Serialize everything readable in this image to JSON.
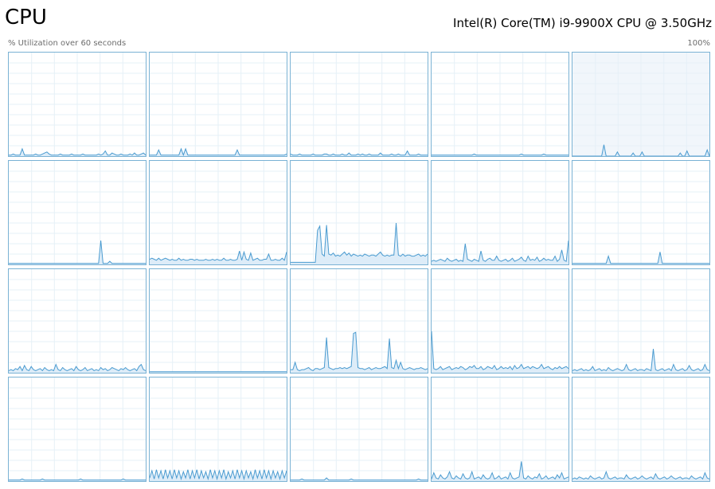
{
  "header": {
    "title": "CPU",
    "cpu_name": "Intel(R) Core(TM) i9-9900X CPU @ 3.50GHz",
    "utilization_label": "% Utilization over 60 seconds",
    "utilization_max": "100%"
  },
  "colors": {
    "border": "#7ab2d4",
    "line": "#4a9bd0",
    "fill": "#d9eaf7",
    "gridline": "#e6f0f7",
    "selected_background": "#f1f6fb"
  },
  "graphs": [
    {
      "selected": false,
      "values": [
        1,
        1,
        2,
        1,
        1,
        1,
        7,
        1,
        1,
        1,
        1,
        1,
        2,
        1,
        1,
        2,
        3,
        4,
        2,
        1,
        1,
        1,
        1,
        2,
        1,
        1,
        1,
        1,
        2,
        1,
        1,
        1,
        1,
        2,
        1,
        1,
        1,
        1,
        1,
        1,
        2,
        1,
        2,
        5,
        1,
        1,
        3,
        2,
        1,
        1,
        2,
        1,
        1,
        1,
        2,
        1,
        3,
        1,
        1,
        2,
        3,
        1
      ]
    },
    {
      "selected": false,
      "values": [
        1,
        1,
        1,
        1,
        6,
        1,
        1,
        1,
        1,
        1,
        1,
        1,
        1,
        1,
        7,
        1,
        7,
        1,
        1,
        1,
        1,
        1,
        1,
        1,
        1,
        1,
        1,
        1,
        1,
        1,
        1,
        1,
        1,
        1,
        1,
        1,
        1,
        1,
        1,
        6,
        1,
        1,
        1,
        1,
        1,
        1,
        1,
        1,
        1,
        1,
        1,
        1,
        1,
        1,
        1,
        1,
        1,
        1,
        1,
        1,
        1,
        2
      ]
    },
    {
      "selected": false,
      "values": [
        2,
        1,
        1,
        1,
        2,
        1,
        1,
        1,
        1,
        1,
        2,
        1,
        1,
        1,
        1,
        2,
        2,
        1,
        1,
        2,
        1,
        1,
        1,
        2,
        1,
        1,
        3,
        1,
        1,
        1,
        2,
        1,
        2,
        1,
        1,
        2,
        1,
        1,
        1,
        1,
        3,
        1,
        1,
        1,
        1,
        2,
        1,
        1,
        2,
        1,
        1,
        1,
        5,
        1,
        1,
        1,
        1,
        2,
        1,
        1,
        1,
        1
      ]
    },
    {
      "selected": false,
      "values": [
        1,
        1,
        1,
        1,
        1,
        1,
        1,
        1,
        1,
        1,
        1,
        1,
        1,
        1,
        1,
        1,
        1,
        1,
        1,
        2,
        1,
        1,
        1,
        1,
        1,
        1,
        1,
        1,
        1,
        1,
        1,
        1,
        1,
        1,
        1,
        1,
        1,
        1,
        1,
        1,
        2,
        1,
        1,
        1,
        1,
        1,
        1,
        1,
        1,
        1,
        2,
        1,
        1,
        1,
        1,
        1,
        1,
        1,
        1,
        1,
        1,
        1
      ]
    },
    {
      "selected": true,
      "values": [
        0,
        0,
        0,
        0,
        0,
        0,
        0,
        0,
        0,
        0,
        0,
        0,
        0,
        0,
        11,
        0,
        0,
        0,
        0,
        0,
        4,
        0,
        0,
        0,
        0,
        0,
        0,
        3,
        0,
        0,
        0,
        4,
        0,
        0,
        0,
        0,
        0,
        0,
        0,
        0,
        0,
        0,
        0,
        0,
        0,
        0,
        0,
        0,
        3,
        0,
        0,
        5,
        0,
        0,
        0,
        0,
        0,
        0,
        0,
        0,
        6,
        0
      ]
    },
    {
      "selected": false,
      "values": [
        1,
        1,
        1,
        1,
        1,
        1,
        1,
        1,
        1,
        1,
        1,
        1,
        1,
        1,
        1,
        1,
        1,
        1,
        1,
        1,
        1,
        1,
        1,
        1,
        1,
        1,
        1,
        1,
        1,
        1,
        1,
        1,
        1,
        1,
        1,
        1,
        1,
        1,
        1,
        1,
        1,
        23,
        1,
        1,
        1,
        3,
        1,
        1,
        1,
        1,
        1,
        1,
        1,
        1,
        1,
        1,
        1,
        1,
        1,
        1,
        1,
        1
      ]
    },
    {
      "selected": false,
      "values": [
        5,
        6,
        5,
        4,
        6,
        4,
        5,
        6,
        5,
        4,
        5,
        4,
        4,
        6,
        4,
        5,
        4,
        4,
        5,
        5,
        4,
        5,
        4,
        4,
        4,
        5,
        4,
        4,
        5,
        4,
        5,
        4,
        4,
        6,
        4,
        4,
        5,
        4,
        4,
        5,
        13,
        4,
        12,
        5,
        4,
        11,
        4,
        5,
        6,
        4,
        4,
        5,
        5,
        10,
        4,
        4,
        5,
        4,
        4,
        6,
        4,
        12
      ]
    },
    {
      "selected": false,
      "values": [
        2,
        2,
        2,
        2,
        2,
        2,
        2,
        2,
        2,
        2,
        2,
        2,
        33,
        37,
        10,
        8,
        38,
        10,
        9,
        11,
        8,
        9,
        8,
        10,
        12,
        9,
        11,
        8,
        10,
        9,
        8,
        9,
        8,
        10,
        9,
        8,
        9,
        9,
        8,
        10,
        12,
        9,
        8,
        9,
        8,
        9,
        9,
        40,
        9,
        8,
        10,
        8,
        9,
        9,
        8,
        8,
        9,
        10,
        8,
        9,
        8,
        10
      ]
    },
    {
      "selected": false,
      "values": [
        3,
        4,
        3,
        4,
        5,
        4,
        3,
        6,
        4,
        3,
        4,
        5,
        3,
        4,
        3,
        20,
        5,
        4,
        3,
        5,
        4,
        3,
        13,
        4,
        3,
        5,
        6,
        4,
        4,
        8,
        4,
        3,
        4,
        5,
        3,
        4,
        6,
        3,
        4,
        5,
        7,
        4,
        3,
        8,
        4,
        5,
        4,
        7,
        3,
        4,
        6,
        4,
        5,
        4,
        4,
        8,
        3,
        5,
        14,
        4,
        3,
        23
      ]
    },
    {
      "selected": false,
      "values": [
        1,
        1,
        1,
        1,
        1,
        1,
        1,
        1,
        1,
        1,
        1,
        1,
        1,
        1,
        1,
        1,
        8,
        1,
        1,
        1,
        1,
        1,
        1,
        1,
        1,
        1,
        1,
        1,
        1,
        1,
        1,
        1,
        1,
        1,
        1,
        1,
        1,
        1,
        1,
        12,
        1,
        1,
        1,
        1,
        1,
        1,
        1,
        1,
        1,
        1,
        1,
        1,
        1,
        1,
        1,
        1,
        1,
        1,
        1,
        1,
        1,
        1
      ]
    },
    {
      "selected": false,
      "values": [
        2,
        3,
        2,
        4,
        3,
        6,
        2,
        7,
        3,
        2,
        6,
        3,
        2,
        3,
        4,
        2,
        5,
        3,
        2,
        3,
        2,
        8,
        3,
        2,
        5,
        3,
        2,
        3,
        4,
        2,
        6,
        3,
        2,
        3,
        5,
        2,
        3,
        4,
        2,
        3,
        2,
        5,
        3,
        4,
        2,
        3,
        5,
        4,
        3,
        2,
        4,
        3,
        5,
        3,
        2,
        3,
        4,
        2,
        6,
        8,
        3,
        2
      ]
    },
    {
      "selected": false,
      "values": [
        1,
        1,
        1,
        1,
        1,
        1,
        1,
        1,
        1,
        1,
        1,
        1,
        1,
        1,
        1,
        1,
        1,
        1,
        1,
        1,
        1,
        1,
        1,
        1,
        1,
        1,
        1,
        1,
        1,
        1,
        1,
        1,
        1,
        1,
        1,
        1,
        1,
        1,
        1,
        1,
        1,
        1,
        1,
        1,
        1,
        1,
        1,
        1,
        1,
        1,
        1,
        1,
        1,
        1,
        1,
        1,
        1,
        1,
        1,
        1,
        1,
        1
      ]
    },
    {
      "selected": false,
      "values": [
        3,
        3,
        10,
        3,
        2,
        3,
        3,
        4,
        5,
        3,
        2,
        4,
        4,
        3,
        4,
        5,
        34,
        5,
        4,
        3,
        4,
        4,
        5,
        4,
        5,
        4,
        5,
        6,
        38,
        39,
        5,
        4,
        4,
        3,
        4,
        5,
        3,
        4,
        5,
        4,
        4,
        5,
        6,
        4,
        33,
        5,
        4,
        12,
        4,
        10,
        4,
        3,
        4,
        5,
        4,
        3,
        4,
        4,
        5,
        4,
        3,
        4
      ]
    },
    {
      "selected": false,
      "values": [
        40,
        4,
        3,
        4,
        6,
        3,
        4,
        5,
        6,
        3,
        4,
        5,
        4,
        6,
        5,
        3,
        4,
        6,
        5,
        7,
        4,
        4,
        6,
        3,
        4,
        6,
        5,
        4,
        7,
        3,
        4,
        6,
        4,
        5,
        4,
        6,
        3,
        7,
        4,
        5,
        8,
        4,
        5,
        6,
        4,
        6,
        5,
        4,
        5,
        8,
        4,
        5,
        6,
        4,
        3,
        5,
        4,
        6,
        4,
        5,
        6,
        4
      ]
    },
    {
      "selected": false,
      "values": [
        2,
        3,
        2,
        3,
        4,
        2,
        3,
        2,
        3,
        6,
        2,
        3,
        4,
        2,
        3,
        2,
        5,
        3,
        2,
        3,
        4,
        3,
        2,
        3,
        8,
        3,
        2,
        3,
        4,
        2,
        3,
        3,
        2,
        4,
        3,
        2,
        23,
        3,
        2,
        3,
        4,
        2,
        3,
        4,
        2,
        8,
        3,
        2,
        3,
        4,
        2,
        3,
        7,
        3,
        2,
        3,
        4,
        2,
        3,
        8,
        3,
        2
      ]
    },
    {
      "selected": false,
      "values": [
        1,
        1,
        1,
        1,
        1,
        1,
        2,
        1,
        1,
        1,
        1,
        1,
        1,
        1,
        1,
        2,
        1,
        1,
        1,
        1,
        1,
        1,
        1,
        1,
        1,
        1,
        1,
        1,
        1,
        1,
        1,
        1,
        2,
        1,
        1,
        1,
        1,
        1,
        1,
        1,
        1,
        1,
        1,
        1,
        1,
        1,
        1,
        1,
        1,
        1,
        1,
        2,
        1,
        1,
        1,
        1,
        1,
        1,
        1,
        1,
        1,
        1
      ]
    },
    {
      "selected": false,
      "values": [
        3,
        10,
        2,
        11,
        3,
        10,
        2,
        11,
        3,
        10,
        2,
        11,
        3,
        10,
        2,
        9,
        3,
        11,
        2,
        10,
        3,
        11,
        2,
        10,
        3,
        9,
        2,
        11,
        3,
        10,
        2,
        10,
        3,
        11,
        2,
        9,
        3,
        10,
        2,
        11,
        3,
        10,
        2,
        10,
        3,
        9,
        2,
        11,
        3,
        10,
        2,
        11,
        3,
        10,
        2,
        10,
        3,
        9,
        2,
        10,
        3,
        10
      ]
    },
    {
      "selected": false,
      "values": [
        1,
        1,
        1,
        1,
        1,
        2,
        1,
        1,
        1,
        1,
        1,
        1,
        1,
        1,
        1,
        1,
        3,
        1,
        1,
        1,
        1,
        1,
        1,
        1,
        1,
        1,
        1,
        2,
        1,
        1,
        1,
        1,
        1,
        1,
        1,
        1,
        1,
        1,
        1,
        1,
        1,
        1,
        1,
        1,
        1,
        1,
        1,
        1,
        1,
        1,
        1,
        1,
        1,
        1,
        1,
        1,
        1,
        2,
        1,
        1,
        1,
        1
      ]
    },
    {
      "selected": false,
      "values": [
        2,
        8,
        3,
        2,
        6,
        3,
        2,
        4,
        9,
        3,
        2,
        5,
        3,
        2,
        7,
        3,
        2,
        3,
        9,
        2,
        3,
        4,
        2,
        6,
        3,
        2,
        3,
        8,
        2,
        3,
        5,
        2,
        3,
        4,
        2,
        8,
        3,
        2,
        3,
        4,
        19,
        3,
        2,
        5,
        3,
        2,
        4,
        3,
        7,
        2,
        3,
        5,
        2,
        3,
        4,
        2,
        6,
        3,
        8,
        2,
        3,
        4
      ]
    },
    {
      "selected": false,
      "values": [
        2,
        3,
        2,
        4,
        3,
        2,
        3,
        2,
        5,
        3,
        2,
        3,
        4,
        2,
        3,
        9,
        3,
        2,
        3,
        4,
        2,
        3,
        3,
        2,
        6,
        3,
        2,
        3,
        4,
        2,
        3,
        5,
        3,
        2,
        3,
        4,
        2,
        7,
        3,
        2,
        3,
        4,
        2,
        3,
        5,
        3,
        2,
        3,
        4,
        2,
        3,
        3,
        2,
        5,
        3,
        2,
        3,
        4,
        2,
        8,
        3,
        2
      ]
    }
  ]
}
